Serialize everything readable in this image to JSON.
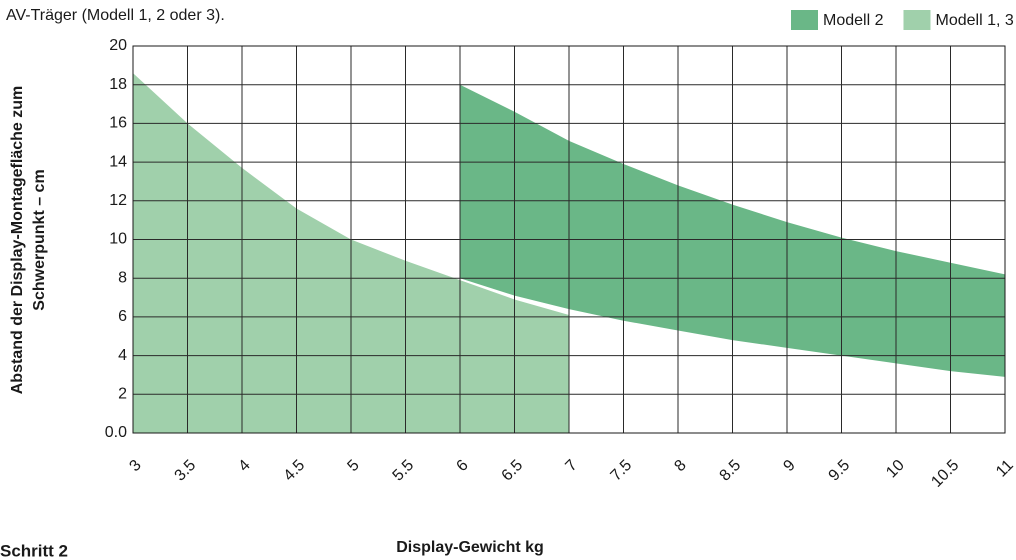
{
  "caption": "AV-Träger (Modell 1, 2 oder 3).",
  "step_heading": "Schritt 2",
  "chart_data": {
    "type": "area",
    "xlabel": "Display-Gewicht kg",
    "ylabel": [
      "Abstand der Display-Montagefläche zum",
      "Schwerpunkt – cm"
    ],
    "x": [
      3,
      3.5,
      4,
      4.5,
      5,
      5.5,
      6,
      6.5,
      7,
      7.5,
      8,
      8.5,
      9,
      9.5,
      10,
      10.5,
      11
    ],
    "series": [
      {
        "name": "Modell 2",
        "color": "#6ab787",
        "values": [
          null,
          null,
          null,
          null,
          null,
          null,
          18,
          16.6,
          15.1,
          13.9,
          12.8,
          11.8,
          10.9,
          10.1,
          9.4,
          8.8,
          8.2
        ],
        "lower": [
          null,
          null,
          null,
          null,
          null,
          null,
          8,
          7.1,
          6.4,
          5.8,
          5.3,
          4.8,
          4.4,
          4.0,
          3.6,
          3.2,
          2.9
        ]
      },
      {
        "name": "Modell 1, 3",
        "color": "#a0d0ab",
        "values": [
          18.6,
          16,
          13.7,
          11.6,
          10,
          8.9,
          7.9,
          6.9,
          6.1,
          null,
          null,
          null,
          null,
          null,
          null,
          null,
          null
        ]
      }
    ],
    "xlim": [
      3,
      11
    ],
    "ylim": [
      0,
      20
    ],
    "xticks": [
      3,
      3.5,
      4,
      4.5,
      5,
      5.5,
      6,
      6.5,
      7,
      7.5,
      8,
      8.5,
      9,
      9.5,
      10,
      10.5,
      11
    ],
    "yticks": [
      {
        "value": 0,
        "label": "0.0"
      },
      2,
      4,
      6,
      8,
      10,
      12,
      14,
      16,
      18,
      20
    ],
    "grid": true,
    "legend": "top-right"
  }
}
